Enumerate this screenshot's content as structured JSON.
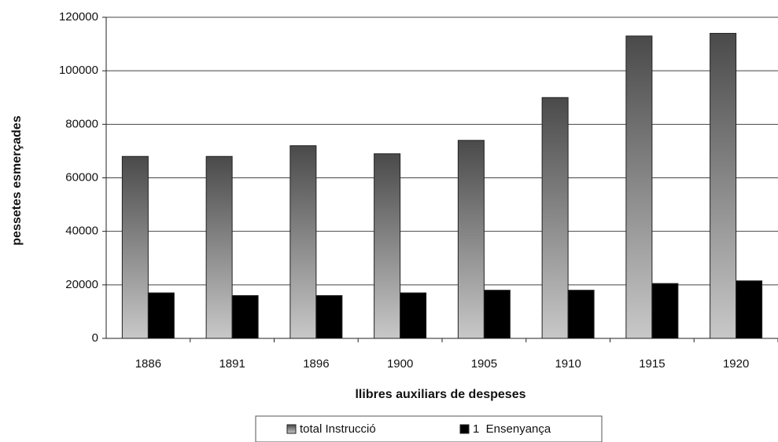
{
  "chart_data": {
    "type": "bar",
    "y_label": "pessetes esmerçades",
    "x_label": "llibres auxiliars de despeses",
    "categories": [
      "1886",
      "1891",
      "1896",
      "1900",
      "1905",
      "1910",
      "1915",
      "1920"
    ],
    "series": [
      {
        "name": "total Instrucció",
        "color": "#c8c8c8",
        "values": [
          68000,
          68000,
          72000,
          69000,
          74000,
          90000,
          113000,
          114000
        ]
      },
      {
        "name": "1  Ensenyança",
        "color": "#000000",
        "values": [
          17000,
          16000,
          16000,
          17000,
          18000,
          18000,
          20500,
          21500
        ]
      }
    ],
    "ylim": [
      0,
      120000
    ],
    "yticks": [
      0,
      20000,
      40000,
      60000,
      80000,
      100000,
      120000
    ],
    "grid": true,
    "legend": "bottom"
  }
}
